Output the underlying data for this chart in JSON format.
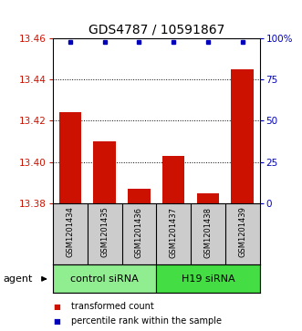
{
  "title": "GDS4787 / 10591867",
  "samples": [
    "GSM1201434",
    "GSM1201435",
    "GSM1201436",
    "GSM1201437",
    "GSM1201438",
    "GSM1201439"
  ],
  "bar_values": [
    13.424,
    13.41,
    13.387,
    13.403,
    13.385,
    13.445
  ],
  "percentile_values": [
    100,
    100,
    100,
    100,
    100,
    100
  ],
  "ylim_left": [
    13.38,
    13.46
  ],
  "ylim_right": [
    0,
    100
  ],
  "yticks_left": [
    13.38,
    13.4,
    13.42,
    13.44,
    13.46
  ],
  "yticks_right": [
    0,
    25,
    50,
    75,
    100
  ],
  "ytick_labels_right": [
    "0",
    "25",
    "50",
    "75",
    "100%"
  ],
  "bar_color": "#cc1100",
  "percentile_color": "#0000bb",
  "bar_bottom": 13.38,
  "groups": [
    {
      "label": "control siRNA",
      "indices": [
        0,
        1,
        2
      ],
      "color": "#90ee90"
    },
    {
      "label": "H19 siRNA",
      "indices": [
        3,
        4,
        5
      ],
      "color": "#44dd44"
    }
  ],
  "agent_label": "agent",
  "legend_items": [
    {
      "color": "#cc1100",
      "label": "transformed count"
    },
    {
      "color": "#0000bb",
      "label": "percentile rank within the sample"
    }
  ],
  "title_fontsize": 10,
  "tick_fontsize": 7.5,
  "sample_fontsize": 6,
  "group_fontsize": 8,
  "legend_fontsize": 7,
  "xlabel_area_color": "#cccccc",
  "grid_dotted_at": [
    13.4,
    13.42,
    13.44
  ]
}
